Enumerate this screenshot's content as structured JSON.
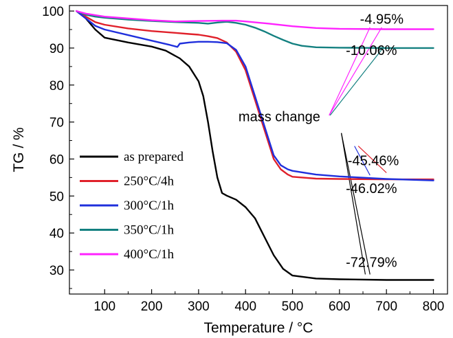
{
  "chart_data": {
    "type": "line",
    "xlabel": "Temperature / °C",
    "ylabel": "TG / %",
    "xlim": [
      25,
      830
    ],
    "ylim": [
      23.5,
      101.5
    ],
    "x_ticks": [
      100,
      200,
      300,
      400,
      500,
      600,
      700,
      800
    ],
    "y_ticks": [
      30,
      40,
      50,
      60,
      70,
      80,
      90,
      100
    ],
    "grid": false,
    "legend_position": "bottom-left",
    "series": [
      {
        "name": "as prepared",
        "color": "#000000",
        "points": [
          [
            40,
            100
          ],
          [
            60,
            98
          ],
          [
            80,
            95
          ],
          [
            100,
            92.8
          ],
          [
            150,
            91.5
          ],
          [
            200,
            90.4
          ],
          [
            230,
            89.3
          ],
          [
            260,
            87.2
          ],
          [
            280,
            85
          ],
          [
            300,
            81
          ],
          [
            310,
            77
          ],
          [
            320,
            70
          ],
          [
            330,
            62
          ],
          [
            340,
            55
          ],
          [
            350,
            50.8
          ],
          [
            360,
            50.1
          ],
          [
            380,
            49
          ],
          [
            400,
            47
          ],
          [
            420,
            44
          ],
          [
            440,
            39
          ],
          [
            460,
            34
          ],
          [
            480,
            30.3
          ],
          [
            500,
            28.5
          ],
          [
            550,
            27.7
          ],
          [
            600,
            27.5
          ],
          [
            700,
            27.3
          ],
          [
            800,
            27.3
          ]
        ]
      },
      {
        "name": "250°C/4h",
        "color": "#e0202a",
        "points": [
          [
            40,
            100
          ],
          [
            60,
            98.5
          ],
          [
            80,
            97
          ],
          [
            100,
            96.3
          ],
          [
            150,
            95.3
          ],
          [
            200,
            94.6
          ],
          [
            250,
            94.1
          ],
          [
            280,
            93.8
          ],
          [
            300,
            93.6
          ],
          [
            320,
            93.2
          ],
          [
            340,
            92.7
          ],
          [
            360,
            91.5
          ],
          [
            380,
            89
          ],
          [
            400,
            84
          ],
          [
            420,
            76
          ],
          [
            440,
            68
          ],
          [
            460,
            60
          ],
          [
            475,
            57.2
          ],
          [
            490,
            55.8
          ],
          [
            500,
            55.2
          ],
          [
            550,
            54.7
          ],
          [
            600,
            54.6
          ],
          [
            700,
            54.5
          ],
          [
            800,
            54.5
          ]
        ]
      },
      {
        "name": "300°C/1h",
        "color": "#1f2fdc",
        "points": [
          [
            40,
            100
          ],
          [
            60,
            98
          ],
          [
            80,
            96
          ],
          [
            100,
            95
          ],
          [
            150,
            93.5
          ],
          [
            200,
            92
          ],
          [
            240,
            90.8
          ],
          [
            255,
            90.3
          ],
          [
            260,
            91.2
          ],
          [
            280,
            91.5
          ],
          [
            300,
            91.7
          ],
          [
            320,
            91.7
          ],
          [
            340,
            91.6
          ],
          [
            360,
            91.3
          ],
          [
            380,
            89.5
          ],
          [
            400,
            85
          ],
          [
            420,
            77
          ],
          [
            440,
            69
          ],
          [
            460,
            61
          ],
          [
            475,
            58.3
          ],
          [
            490,
            57.2
          ],
          [
            500,
            56.8
          ],
          [
            550,
            55.8
          ],
          [
            600,
            55.3
          ],
          [
            700,
            54.6
          ],
          [
            800,
            54.2
          ]
        ]
      },
      {
        "name": "350°C/1h",
        "color": "#138080",
        "points": [
          [
            40,
            100
          ],
          [
            60,
            99
          ],
          [
            80,
            98.5
          ],
          [
            100,
            98.2
          ],
          [
            150,
            97.7
          ],
          [
            200,
            97.3
          ],
          [
            250,
            97
          ],
          [
            300,
            96.8
          ],
          [
            320,
            96.6
          ],
          [
            340,
            96.9
          ],
          [
            360,
            97.1
          ],
          [
            380,
            96.8
          ],
          [
            400,
            96.3
          ],
          [
            420,
            95.5
          ],
          [
            440,
            94.5
          ],
          [
            460,
            93.3
          ],
          [
            480,
            92.2
          ],
          [
            500,
            91.2
          ],
          [
            520,
            90.6
          ],
          [
            550,
            90.2
          ],
          [
            600,
            90.1
          ],
          [
            700,
            90
          ],
          [
            800,
            90
          ]
        ]
      },
      {
        "name": "400°C/1h",
        "color": "#ff22ff",
        "points": [
          [
            40,
            100
          ],
          [
            60,
            99.3
          ],
          [
            80,
            98.9
          ],
          [
            100,
            98.5
          ],
          [
            150,
            98
          ],
          [
            200,
            97.5
          ],
          [
            250,
            97.2
          ],
          [
            300,
            97.3
          ],
          [
            350,
            97.4
          ],
          [
            380,
            97.4
          ],
          [
            400,
            97.2
          ],
          [
            450,
            96.6
          ],
          [
            500,
            95.9
          ],
          [
            550,
            95.4
          ],
          [
            600,
            95.2
          ],
          [
            700,
            95.1
          ],
          [
            800,
            95.1
          ]
        ]
      }
    ],
    "annotations": {
      "labels": [
        {
          "text": "-4.95%",
          "x": 690,
          "y": 96.6
        },
        {
          "text": "-10.06%",
          "x": 668,
          "y": 88.1
        },
        {
          "text": "mass change",
          "x": 472,
          "y": 70.2
        },
        {
          "text": "-45.46%",
          "x": 672,
          "y": 58.3
        },
        {
          "text": "-46.02%",
          "x": 668,
          "y": 50.8
        },
        {
          "text": "-72.79%",
          "x": 668,
          "y": 30.8
        }
      ],
      "pointer_lines": [
        {
          "color": "#ff22ff",
          "from": [
            578,
            71.8
          ],
          "to": [
            665,
            95.6
          ]
        },
        {
          "color": "#ff22ff",
          "from": [
            578,
            71.8
          ],
          "to": [
            690,
            95.6
          ]
        },
        {
          "color": "#138080",
          "from": [
            580,
            71.8
          ],
          "to": [
            690,
            89.6
          ]
        },
        {
          "color": "#e0202a",
          "from": [
            640,
            63.5
          ],
          "to": [
            700,
            56.3
          ]
        },
        {
          "color": "#1f2fdc",
          "from": [
            632,
            63.5
          ],
          "to": [
            665,
            55.6
          ]
        },
        {
          "color": "#000000",
          "from": [
            604,
            67
          ],
          "to": [
            655,
            28.8
          ]
        },
        {
          "color": "#000000",
          "from": [
            604,
            67
          ],
          "to": [
            665,
            28.8
          ]
        }
      ]
    }
  }
}
